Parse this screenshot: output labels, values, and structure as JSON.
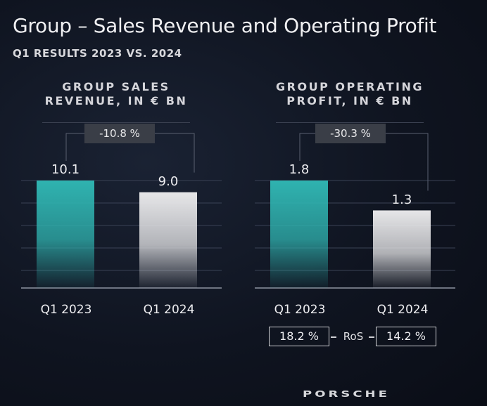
{
  "header": {
    "title": "Group – Sales Revenue and Operating Profit",
    "subtitle": "Q1 RESULTS 2023 VS. 2024"
  },
  "chart_data": [
    {
      "type": "bar",
      "title": "GROUP SALES REVENUE, IN € BN",
      "title_lines": [
        "GROUP SALES",
        "REVENUE, IN € BN"
      ],
      "categories": [
        "Q1 2023",
        "Q1 2024"
      ],
      "values": [
        10.1,
        9.0
      ],
      "value_labels": [
        "10.1",
        "9.0"
      ],
      "change_label": "-10.8 %",
      "colors": [
        "#2fb3b0",
        "#e6e6e8"
      ],
      "ylim": [
        0,
        10.1
      ],
      "grid": true
    },
    {
      "type": "bar",
      "title": "GROUP OPERATING PROFIT, IN € BN",
      "title_lines": [
        "GROUP OPERATING",
        "PROFIT, IN € BN"
      ],
      "categories": [
        "Q1 2023",
        "Q1 2024"
      ],
      "values": [
        1.8,
        1.3
      ],
      "value_labels": [
        "1.8",
        "1.3"
      ],
      "change_label": "-30.3 %",
      "colors": [
        "#2fb3b0",
        "#e6e6e8"
      ],
      "ylim": [
        0,
        1.8
      ],
      "grid": true,
      "ros": {
        "label": "RoS",
        "values": [
          "18.2 %",
          "14.2 %"
        ]
      }
    }
  ],
  "brand": {
    "logo_text": "PORSCHE"
  }
}
